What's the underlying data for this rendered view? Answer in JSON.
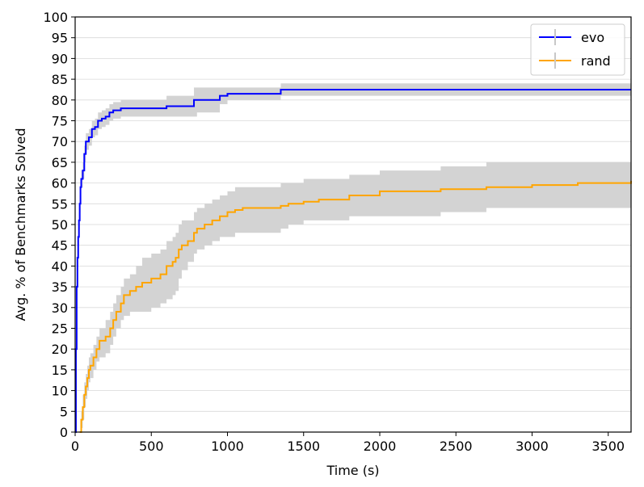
{
  "chart_data": {
    "type": "line",
    "title": "",
    "xlabel": "Time (s)",
    "ylabel": "Avg. % of Benchmarks Solved",
    "xlim": [
      0,
      3650
    ],
    "ylim": [
      0,
      100
    ],
    "xticks": [
      0,
      500,
      1000,
      1500,
      2000,
      2500,
      3000,
      3500
    ],
    "yticks": [
      0,
      5,
      10,
      15,
      20,
      25,
      30,
      35,
      40,
      45,
      50,
      55,
      60,
      65,
      70,
      75,
      80,
      85,
      90,
      95,
      100
    ],
    "grid": "horizontal",
    "legend_position": "top-right",
    "series": [
      {
        "name": "evo",
        "color": "#0000ff",
        "band_color": "#d3d3d3",
        "x": [
          0,
          5,
          10,
          15,
          20,
          25,
          30,
          35,
          40,
          50,
          60,
          70,
          80,
          90,
          110,
          130,
          150,
          175,
          200,
          225,
          250,
          300,
          600,
          780,
          800,
          950,
          1000,
          1050,
          1350,
          3650
        ],
        "y": [
          0,
          20,
          35,
          42,
          47,
          51,
          55,
          59,
          61,
          63,
          67,
          70,
          70,
          71,
          73,
          73.5,
          75,
          75.5,
          76,
          77,
          77.5,
          78,
          78.5,
          80,
          80,
          81,
          81.5,
          81.5,
          82.5,
          82.5
        ],
        "lower": [
          0,
          18,
          33,
          40,
          45,
          49,
          53,
          57,
          59,
          61,
          65,
          68,
          68,
          69,
          71,
          71.5,
          73,
          73.5,
          74,
          75,
          75.5,
          76,
          76,
          76,
          77,
          79,
          80,
          80,
          81,
          81
        ],
        "upper": [
          0,
          22,
          37,
          44,
          49,
          53,
          57,
          61,
          63,
          65,
          69,
          72,
          72,
          73,
          75,
          75.5,
          77,
          77.5,
          78,
          79,
          79.5,
          80,
          81,
          83,
          83,
          83,
          83,
          83,
          84,
          84
        ]
      },
      {
        "name": "rand",
        "color": "#ffa500",
        "band_color": "#d3d3d3",
        "x": [
          30,
          40,
          50,
          60,
          70,
          80,
          90,
          100,
          120,
          140,
          160,
          200,
          230,
          250,
          270,
          300,
          320,
          360,
          400,
          440,
          500,
          560,
          600,
          640,
          660,
          680,
          700,
          740,
          780,
          800,
          850,
          900,
          950,
          1000,
          1050,
          1100,
          1350,
          1400,
          1500,
          1600,
          1800,
          2000,
          2400,
          2700,
          3000,
          3300,
          3650
        ],
        "y": [
          0,
          3,
          6,
          9,
          11,
          13,
          15,
          16,
          18,
          20,
          22,
          23,
          25,
          27,
          29,
          31,
          33,
          34,
          35,
          36,
          37,
          38,
          40,
          41,
          42,
          44,
          45,
          46,
          48,
          49,
          50,
          51,
          52,
          53,
          53.5,
          54,
          54.5,
          55,
          55.5,
          56,
          57,
          58,
          58.5,
          59,
          59.5,
          60,
          60.5
        ],
        "lower": [
          0,
          1,
          3,
          6,
          8,
          10,
          12,
          13,
          15,
          17,
          18,
          19,
          21,
          23,
          25,
          27,
          28,
          29,
          29,
          29,
          30,
          31,
          32,
          33,
          34,
          37,
          39,
          41,
          43,
          44,
          45,
          46,
          47,
          47,
          48,
          48,
          49,
          50,
          51,
          51,
          52,
          52,
          53,
          54,
          54,
          54,
          55
        ],
        "upper": [
          0,
          5,
          9,
          12,
          14,
          16,
          18,
          19,
          21,
          23,
          25,
          27,
          29,
          31,
          33,
          35,
          37,
          38,
          40,
          42,
          43,
          44,
          46,
          47,
          48,
          50,
          51,
          51,
          53,
          54,
          55,
          56,
          57,
          58,
          59,
          59,
          60,
          60,
          61,
          61,
          62,
          63,
          64,
          65,
          65,
          65,
          66
        ]
      }
    ]
  }
}
